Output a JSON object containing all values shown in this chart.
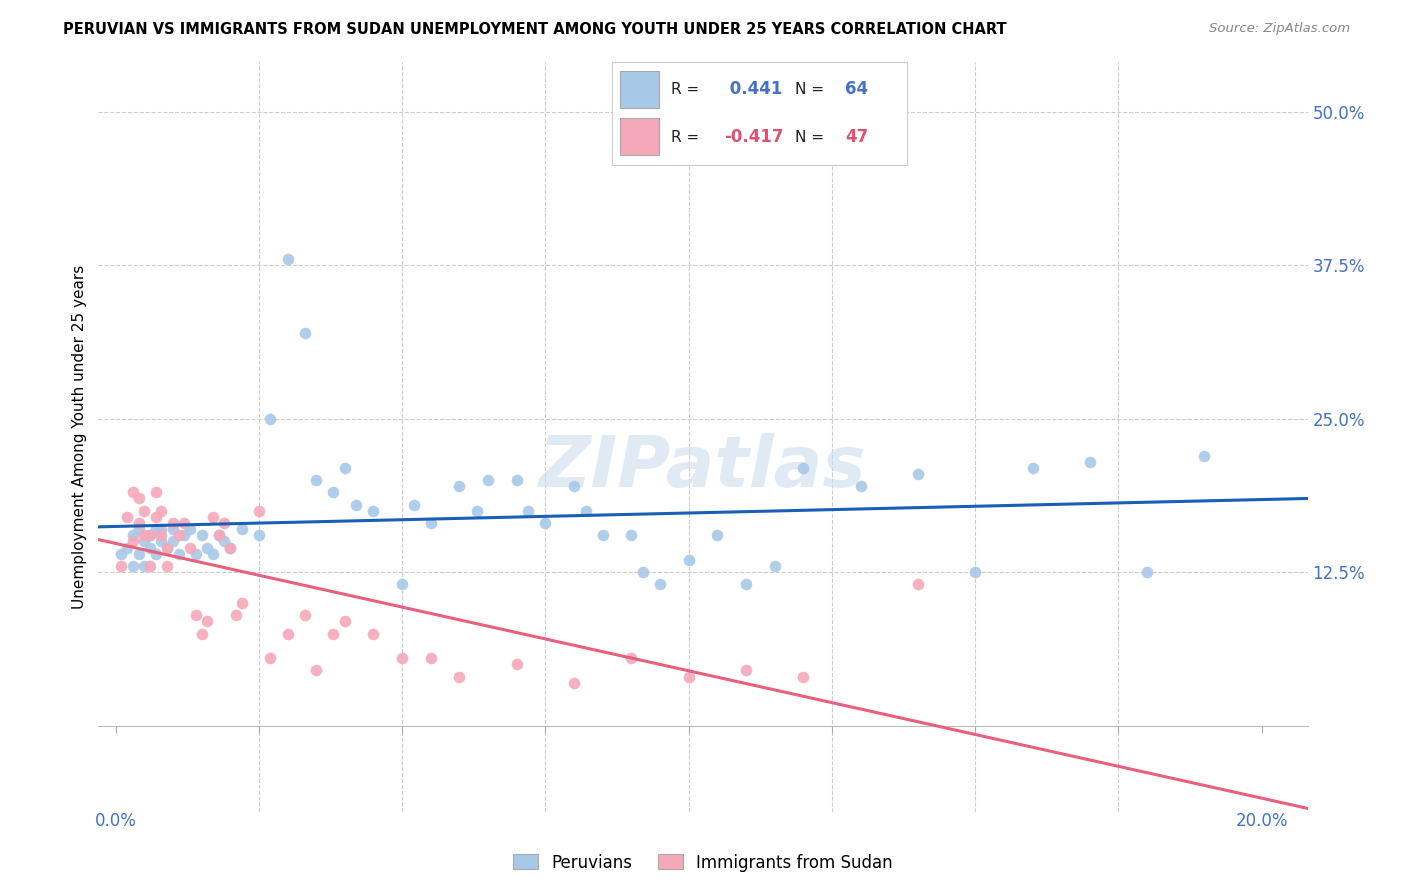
{
  "title": "PERUVIAN VS IMMIGRANTS FROM SUDAN UNEMPLOYMENT AMONG YOUTH UNDER 25 YEARS CORRELATION CHART",
  "source": "Source: ZipAtlas.com",
  "ylabel": "Unemployment Among Youth under 25 years",
  "legend_peru_R": "R =  0.441",
  "legend_peru_N": "N = 64",
  "legend_sudan_R": "R = -0.417",
  "legend_sudan_N": "N = 47",
  "peruvian_color": "#a8c8e8",
  "sudan_color": "#f5a8b8",
  "peruvian_line_color": "#1a5fb4",
  "sudan_line_color": "#e8607a",
  "watermark": "ZIPatlas",
  "peru_x": [
    0.001,
    0.002,
    0.003,
    0.003,
    0.004,
    0.004,
    0.005,
    0.005,
    0.006,
    0.006,
    0.007,
    0.007,
    0.008,
    0.008,
    0.009,
    0.01,
    0.01,
    0.011,
    0.012,
    0.013,
    0.014,
    0.015,
    0.016,
    0.017,
    0.018,
    0.019,
    0.02,
    0.022,
    0.025,
    0.027,
    0.03,
    0.033,
    0.035,
    0.038,
    0.04,
    0.042,
    0.045,
    0.05,
    0.052,
    0.055,
    0.06,
    0.063,
    0.065,
    0.07,
    0.072,
    0.075,
    0.08,
    0.082,
    0.085,
    0.09,
    0.092,
    0.095,
    0.1,
    0.105,
    0.11,
    0.115,
    0.12,
    0.13,
    0.14,
    0.15,
    0.16,
    0.17,
    0.18,
    0.19
  ],
  "peru_y": [
    0.14,
    0.145,
    0.13,
    0.155,
    0.14,
    0.16,
    0.15,
    0.13,
    0.155,
    0.145,
    0.16,
    0.14,
    0.15,
    0.16,
    0.145,
    0.15,
    0.16,
    0.14,
    0.155,
    0.16,
    0.14,
    0.155,
    0.145,
    0.14,
    0.155,
    0.15,
    0.145,
    0.16,
    0.155,
    0.25,
    0.38,
    0.32,
    0.2,
    0.19,
    0.21,
    0.18,
    0.175,
    0.115,
    0.18,
    0.165,
    0.195,
    0.175,
    0.2,
    0.2,
    0.175,
    0.165,
    0.195,
    0.175,
    0.155,
    0.155,
    0.125,
    0.115,
    0.135,
    0.155,
    0.115,
    0.13,
    0.21,
    0.195,
    0.205,
    0.125,
    0.21,
    0.215,
    0.125,
    0.22
  ],
  "sudan_x": [
    0.001,
    0.002,
    0.003,
    0.003,
    0.004,
    0.004,
    0.005,
    0.005,
    0.006,
    0.006,
    0.007,
    0.007,
    0.008,
    0.008,
    0.009,
    0.009,
    0.01,
    0.011,
    0.012,
    0.013,
    0.014,
    0.015,
    0.016,
    0.017,
    0.018,
    0.019,
    0.02,
    0.021,
    0.022,
    0.025,
    0.027,
    0.03,
    0.033,
    0.035,
    0.038,
    0.04,
    0.045,
    0.05,
    0.055,
    0.06,
    0.07,
    0.08,
    0.09,
    0.1,
    0.11,
    0.12,
    0.14
  ],
  "sudan_y": [
    0.13,
    0.17,
    0.15,
    0.19,
    0.185,
    0.165,
    0.155,
    0.175,
    0.13,
    0.155,
    0.19,
    0.17,
    0.155,
    0.175,
    0.13,
    0.145,
    0.165,
    0.155,
    0.165,
    0.145,
    0.09,
    0.075,
    0.085,
    0.17,
    0.155,
    0.165,
    0.145,
    0.09,
    0.1,
    0.175,
    0.055,
    0.075,
    0.09,
    0.045,
    0.075,
    0.085,
    0.075,
    0.055,
    0.055,
    0.04,
    0.05,
    0.035,
    0.055,
    0.04,
    0.045,
    0.04,
    0.115
  ],
  "xlim_min": -0.003,
  "xlim_max": 0.208,
  "ylim_min": -0.07,
  "ylim_max": 0.54,
  "xticks": [
    0.0,
    0.025,
    0.05,
    0.075,
    0.1,
    0.125,
    0.15,
    0.175,
    0.2
  ],
  "yticks": [
    0.0,
    0.125,
    0.25,
    0.375,
    0.5
  ],
  "ytick_labels": [
    "",
    "12.5%",
    "25.0%",
    "37.5%",
    "50.0%"
  ]
}
